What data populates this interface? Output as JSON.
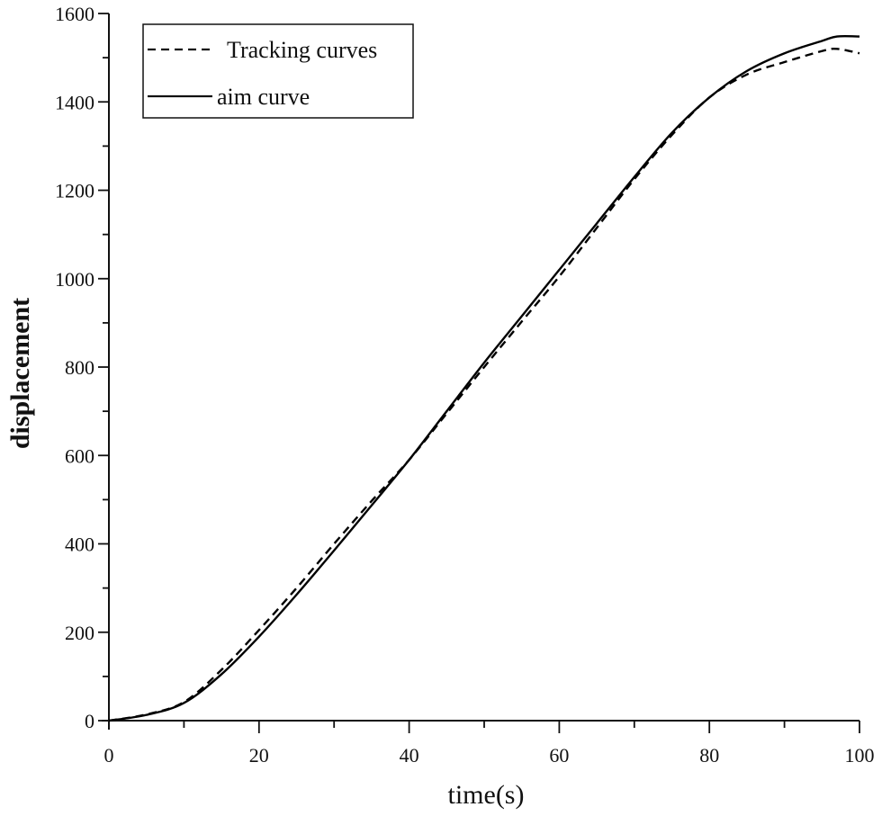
{
  "chart_data": {
    "type": "line",
    "title": "",
    "xlabel": "time(s)",
    "ylabel": "displacement",
    "xlim": [
      0,
      100
    ],
    "ylim": [
      0,
      1600
    ],
    "xticks": [
      0,
      20,
      40,
      60,
      80,
      100
    ],
    "yticks": [
      0,
      200,
      400,
      600,
      800,
      1000,
      1200,
      1400,
      1600
    ],
    "x_minor_step": 10,
    "y_minor_step": 100,
    "grid": false,
    "legend_position": "upper left",
    "series": [
      {
        "name": "Tracking curves",
        "style": "dashed",
        "color": "#000000",
        "x": [
          0,
          5,
          10,
          15,
          20,
          25,
          30,
          35,
          40,
          45,
          50,
          55,
          60,
          65,
          70,
          75,
          80,
          85,
          90,
          95,
          97,
          100
        ],
        "values": [
          0,
          14,
          42,
          115,
          205,
          300,
          400,
          497,
          590,
          695,
          800,
          903,
          1005,
          1115,
          1225,
          1325,
          1410,
          1462,
          1490,
          1515,
          1520,
          1510
        ]
      },
      {
        "name": "aim curve",
        "style": "solid",
        "color": "#000000",
        "x": [
          0,
          5,
          10,
          15,
          20,
          25,
          30,
          35,
          40,
          45,
          50,
          55,
          60,
          65,
          70,
          75,
          80,
          85,
          90,
          95,
          97,
          100
        ],
        "values": [
          0,
          13,
          40,
          105,
          190,
          285,
          385,
          487,
          590,
          700,
          810,
          915,
          1020,
          1125,
          1230,
          1330,
          1410,
          1470,
          1510,
          1538,
          1548,
          1548
        ]
      }
    ]
  }
}
